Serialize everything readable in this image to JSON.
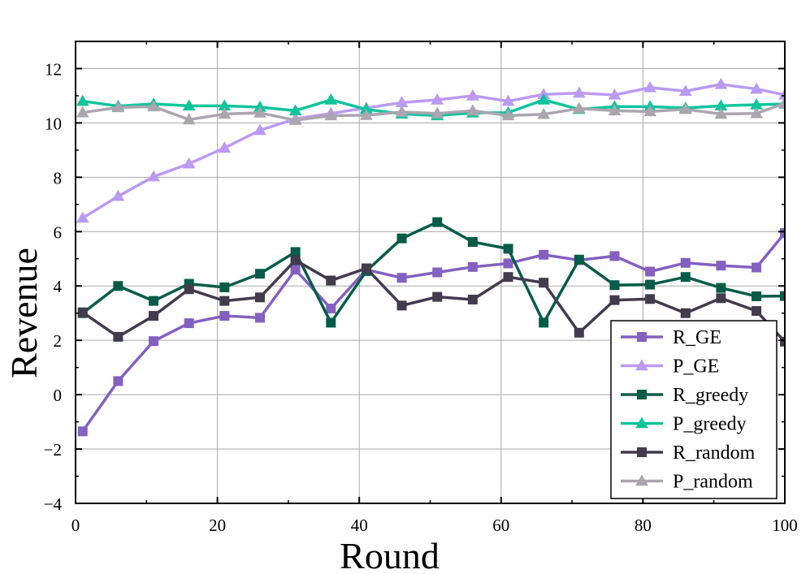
{
  "chart_data": {
    "type": "line",
    "xlabel": "Round",
    "ylabel": "Revenue",
    "xlim": [
      0,
      100
    ],
    "ylim": [
      -4,
      13
    ],
    "xticks": [
      0,
      20,
      40,
      60,
      80,
      100
    ],
    "yticks": [
      -4,
      -2,
      0,
      2,
      4,
      6,
      8,
      10,
      12
    ],
    "ytick_labels": [
      "−4",
      "−2",
      "0",
      "2",
      "4",
      "6",
      "8",
      "10",
      "12"
    ],
    "grid": true,
    "legend_position": "bottom-right",
    "x": [
      1,
      6,
      11,
      16,
      21,
      26,
      31,
      36,
      41,
      46,
      51,
      56,
      61,
      66,
      71,
      76,
      81,
      86,
      91,
      96,
      100
    ],
    "series": [
      {
        "name": "R_GE",
        "marker": "square",
        "color": "#8460C0",
        "values": [
          -1.35,
          0.5,
          1.97,
          2.63,
          2.9,
          2.83,
          4.6,
          3.17,
          4.6,
          4.3,
          4.5,
          4.7,
          4.83,
          5.15,
          4.95,
          5.1,
          4.53,
          4.85,
          4.75,
          4.68,
          5.95
        ]
      },
      {
        "name": "P_GE",
        "marker": "triangle",
        "color": "#BB9AF2",
        "values": [
          6.5,
          7.3,
          8.02,
          8.5,
          9.08,
          9.73,
          10.15,
          10.35,
          10.55,
          10.75,
          10.85,
          11.0,
          10.8,
          11.05,
          11.1,
          11.03,
          11.3,
          11.17,
          11.42,
          11.25,
          11.03
        ]
      },
      {
        "name": "R_greedy",
        "marker": "square",
        "color": "#075C49",
        "values": [
          3.0,
          4.0,
          3.45,
          4.08,
          3.95,
          4.45,
          5.25,
          2.65,
          4.55,
          5.75,
          6.35,
          5.62,
          5.37,
          2.65,
          4.97,
          4.03,
          4.05,
          4.33,
          3.93,
          3.62,
          3.63
        ]
      },
      {
        "name": "P_greedy",
        "marker": "triangle",
        "color": "#10C49C",
        "values": [
          10.8,
          10.62,
          10.7,
          10.63,
          10.63,
          10.58,
          10.45,
          10.85,
          10.5,
          10.33,
          10.27,
          10.37,
          10.38,
          10.85,
          10.5,
          10.6,
          10.6,
          10.55,
          10.63,
          10.67,
          10.7
        ]
      },
      {
        "name": "R_random",
        "marker": "square",
        "color": "#423A4D",
        "values": [
          3.03,
          2.13,
          2.9,
          3.88,
          3.45,
          3.58,
          4.95,
          4.2,
          4.65,
          3.28,
          3.6,
          3.5,
          4.33,
          4.12,
          2.28,
          3.48,
          3.52,
          3.0,
          3.55,
          3.08,
          1.95
        ]
      },
      {
        "name": "P_random",
        "marker": "triangle",
        "color": "#ABA5B0",
        "values": [
          10.38,
          10.57,
          10.6,
          10.12,
          10.33,
          10.37,
          10.1,
          10.27,
          10.28,
          10.4,
          10.35,
          10.45,
          10.27,
          10.32,
          10.53,
          10.45,
          10.42,
          10.5,
          10.33,
          10.35,
          10.72
        ]
      }
    ]
  }
}
